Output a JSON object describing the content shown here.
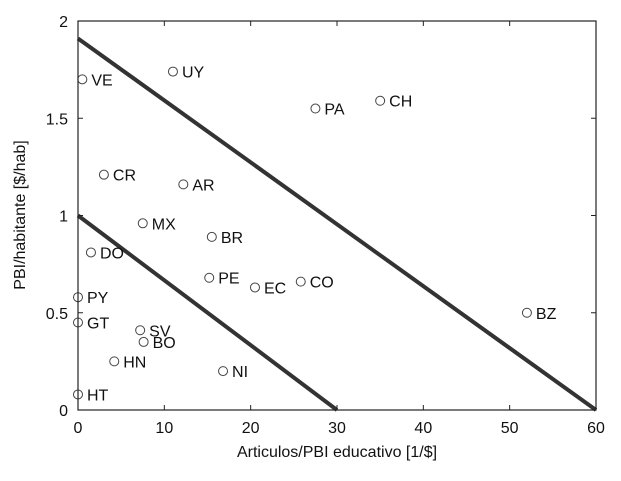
{
  "chart_data": {
    "type": "scatter",
    "xlabel": "Articulos/PBI educativo [1/$]",
    "ylabel": "PBI/habitante [$/hab]",
    "xlim": [
      0,
      60
    ],
    "ylim": [
      0,
      2
    ],
    "xticks": [
      0,
      10,
      20,
      30,
      40,
      50,
      60
    ],
    "yticks": [
      0,
      0.5,
      1,
      1.5,
      2
    ],
    "ytick_labels": [
      "0",
      "0.5",
      "1",
      "1.5",
      "2"
    ],
    "grid": false,
    "points": [
      {
        "label": "VE",
        "x": 0.5,
        "y": 1.7
      },
      {
        "label": "UY",
        "x": 11.0,
        "y": 1.74
      },
      {
        "label": "PA",
        "x": 27.5,
        "y": 1.55
      },
      {
        "label": "CH",
        "x": 35.0,
        "y": 1.59
      },
      {
        "label": "CR",
        "x": 3.0,
        "y": 1.21
      },
      {
        "label": "AR",
        "x": 12.2,
        "y": 1.16
      },
      {
        "label": "MX",
        "x": 7.5,
        "y": 0.96
      },
      {
        "label": "BR",
        "x": 15.5,
        "y": 0.89
      },
      {
        "label": "DO",
        "x": 1.5,
        "y": 0.81
      },
      {
        "label": "PE",
        "x": 15.2,
        "y": 0.68
      },
      {
        "label": "EC",
        "x": 20.5,
        "y": 0.63
      },
      {
        "label": "CO",
        "x": 25.8,
        "y": 0.66
      },
      {
        "label": "BZ",
        "x": 52.0,
        "y": 0.5
      },
      {
        "label": "PY",
        "x": 0.0,
        "y": 0.58
      },
      {
        "label": "GT",
        "x": 0.0,
        "y": 0.45
      },
      {
        "label": "SV",
        "x": 7.2,
        "y": 0.41
      },
      {
        "label": "BO",
        "x": 7.6,
        "y": 0.35
      },
      {
        "label": "HN",
        "x": 4.2,
        "y": 0.25
      },
      {
        "label": "NI",
        "x": 16.8,
        "y": 0.2
      },
      {
        "label": "HT",
        "x": 0.0,
        "y": 0.08
      }
    ],
    "lines": [
      {
        "x": [
          0,
          60
        ],
        "y": [
          1.91,
          0
        ]
      },
      {
        "x": [
          0,
          30
        ],
        "y": [
          1.0,
          0
        ]
      }
    ]
  }
}
